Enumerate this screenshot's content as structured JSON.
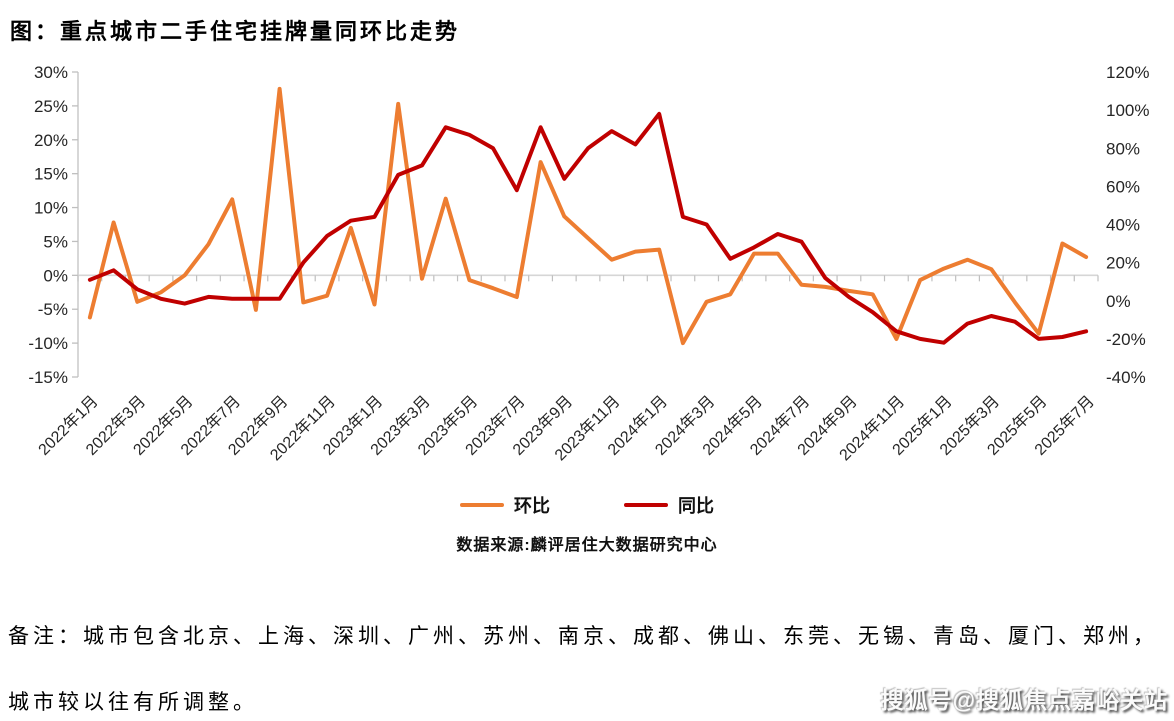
{
  "title": "图：重点城市二手住宅挂牌量同环比走势",
  "source": "数据来源:麟评居住大数据研究中心",
  "notes": {
    "line1": "备注：城市包含北京、上海、深圳、广州、苏州、南京、成都、佛山、东莞、无锡、青岛、厦门、郑州，",
    "line2": "城市较以往有所调整。"
  },
  "watermark": "搜狐号@搜狐焦点嘉峪关站",
  "legend": {
    "items": [
      {
        "label": "环比",
        "color": "#ED7D31"
      },
      {
        "label": "同比",
        "color": "#C00000"
      }
    ]
  },
  "colors": {
    "mom_line": "#ED7D31",
    "yoy_line": "#C00000",
    "axis_line": "#C6C6C6",
    "tick": "#BFBFBF",
    "tick_label": "#262626",
    "zero_gridline": "#D6D6D6"
  },
  "chart_data": {
    "type": "line",
    "title": "图：重点城市二手住宅挂牌量同环比走势",
    "x": [
      "2022年1月",
      "2022年2月",
      "2022年3月",
      "2022年4月",
      "2022年5月",
      "2022年6月",
      "2022年7月",
      "2022年8月",
      "2022年9月",
      "2022年10月",
      "2022年11月",
      "2022年12月",
      "2023年1月",
      "2023年2月",
      "2023年3月",
      "2023年4月",
      "2023年5月",
      "2023年6月",
      "2023年7月",
      "2023年8月",
      "2023年9月",
      "2023年10月",
      "2023年11月",
      "2023年12月",
      "2024年1月",
      "2024年2月",
      "2024年3月",
      "2024年4月",
      "2024年5月",
      "2024年6月",
      "2024年7月",
      "2024年8月",
      "2024年9月",
      "2024年10月",
      "2024年11月",
      "2024年12月",
      "2025年1月",
      "2025年2月",
      "2025年3月",
      "2025年4月",
      "2025年5月",
      "2025年6月",
      "2025年7月"
    ],
    "x_label_every": 2,
    "series": [
      {
        "name": "环比",
        "axis": "left",
        "color": "#ED7D31",
        "unit": "%",
        "values": [
          -6.2,
          7.8,
          -3.9,
          -2.5,
          0,
          4.6,
          11.2,
          -5.1,
          27.5,
          -4,
          -3,
          7,
          -4.3,
          25.3,
          -0.5,
          11.3,
          -0.7,
          -1.9,
          -3.2,
          16.7,
          8.7,
          5.5,
          2.3,
          3.5,
          3.8,
          -10,
          -3.9,
          -2.8,
          3.2,
          3.2,
          -1.4,
          -1.7,
          -2.3,
          -2.8,
          -9.4,
          -0.7,
          1,
          2.3,
          0.9,
          -4,
          -8.6,
          4.7,
          2.7
        ]
      },
      {
        "name": "同比",
        "axis": "right",
        "color": "#C00000",
        "unit": "%",
        "values": [
          11,
          16,
          6,
          1,
          -1.5,
          2,
          1,
          1,
          1,
          20,
          34,
          42,
          44,
          66,
          71,
          91,
          87,
          80,
          58,
          91,
          64,
          80,
          89,
          82,
          98,
          44,
          40,
          22,
          28,
          35,
          31,
          12,
          2,
          -6,
          -16,
          -20,
          -22,
          -12,
          -8,
          -11,
          -20,
          -19,
          -16
        ]
      }
    ],
    "left_axis": {
      "min": -15,
      "max": 30,
      "step": 5,
      "suffix": "%"
    },
    "right_axis": {
      "min": -40,
      "max": 120,
      "step": 20,
      "suffix": "%"
    },
    "legend_position": "bottom",
    "grid": "single horizontal baseline at left-axis 0%"
  }
}
